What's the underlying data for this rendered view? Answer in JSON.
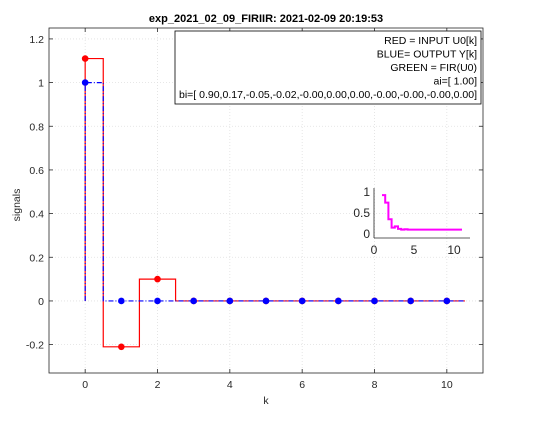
{
  "chart_data": {
    "type": "line",
    "title": "exp_2021_02_09_FIRIIR: 2021-02-09 20:19:53",
    "xlabel": "k",
    "ylabel": "signals",
    "xlim": [
      -1,
      11
    ],
    "ylim": [
      -0.33,
      1.25
    ],
    "xticks": [
      0,
      2,
      4,
      6,
      8,
      10
    ],
    "yticks": [
      -0.2,
      0,
      0.2,
      0.4,
      0.6,
      0.8,
      1,
      1.2
    ],
    "xtick_labels": [
      "0",
      "2",
      "4",
      "6",
      "8",
      "10"
    ],
    "ytick_labels": [
      "-0.2",
      "0",
      "0.2",
      "0.4",
      "0.6",
      "0.8",
      "1",
      "1.2"
    ],
    "grid": true,
    "legend_text": [
      "RED = INPUT U0[k]",
      "BLUE= OUTPUT Y[k]",
      "GREEN = FIR(U0)",
      "ai=[ 1.00]",
      "bi=[ 0.90,0.17,-0.05,-0.02,-0.00,0.00,0.00,-0.00,-0.00,-0.00,0.00]"
    ],
    "legend_position": "top-right",
    "series": [
      {
        "color": "#ff0000",
        "style": "stairs",
        "x": [
          0,
          1,
          2,
          3,
          4,
          5,
          6,
          7,
          8,
          9,
          10
        ],
        "values": [
          1.11,
          -0.21,
          0.1,
          0,
          0,
          0,
          0,
          0,
          0,
          0,
          0
        ]
      },
      {
        "color": "#0000ff",
        "style": "stairs-dashed",
        "x": [
          0,
          1,
          2,
          3,
          4,
          5,
          6,
          7,
          8,
          9,
          10
        ],
        "values": [
          1.0,
          0,
          0,
          0,
          0,
          0,
          0,
          0,
          0,
          0,
          0
        ]
      }
    ],
    "inset": {
      "xlim": [
        0,
        12
      ],
      "ylim": [
        -0.1,
        1.1
      ],
      "xticks": [
        0,
        5,
        10
      ],
      "yticks": [
        0,
        0.5,
        1
      ],
      "xtick_labels": [
        "0",
        "5",
        "10"
      ],
      "ytick_labels": [
        "0",
        "0.5",
        "1"
      ],
      "color": "#ff00ff",
      "x": [
        1,
        1.4,
        1.8,
        2.2,
        2.6,
        3.0,
        3.4,
        3.8,
        4.2,
        11
      ],
      "values": [
        0.93,
        0.75,
        0.35,
        0.15,
        0.18,
        0.12,
        0.1,
        0.11,
        0.1,
        0.1
      ]
    }
  }
}
